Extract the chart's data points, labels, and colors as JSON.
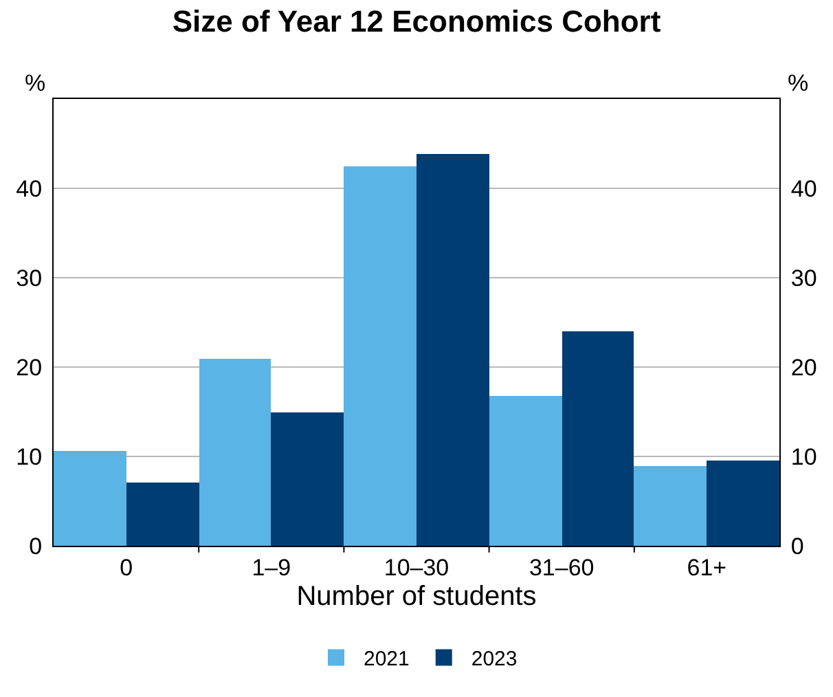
{
  "chart_data": {
    "type": "bar",
    "title": "Size of Year 12 Economics Cohort",
    "xlabel": "Number of students",
    "ylabel": "%",
    "y2label": "%",
    "categories": [
      "0",
      "1–9",
      "10–30",
      "31–60",
      "61+"
    ],
    "series": [
      {
        "name": "2021",
        "color": "#5ab4e5",
        "values": [
          10.6,
          20.9,
          42.5,
          16.7,
          9.0
        ]
      },
      {
        "name": "2023",
        "color": "#003d73",
        "values": [
          7.1,
          15.0,
          43.9,
          24.0,
          9.6
        ]
      }
    ],
    "ylim": [
      0,
      50
    ],
    "yticks": [
      0,
      10,
      20,
      30,
      40
    ],
    "y2lim": [
      0,
      50
    ],
    "y2ticks": [
      0,
      10,
      20,
      30,
      40
    ],
    "grid": "y",
    "legend": "bottom"
  }
}
